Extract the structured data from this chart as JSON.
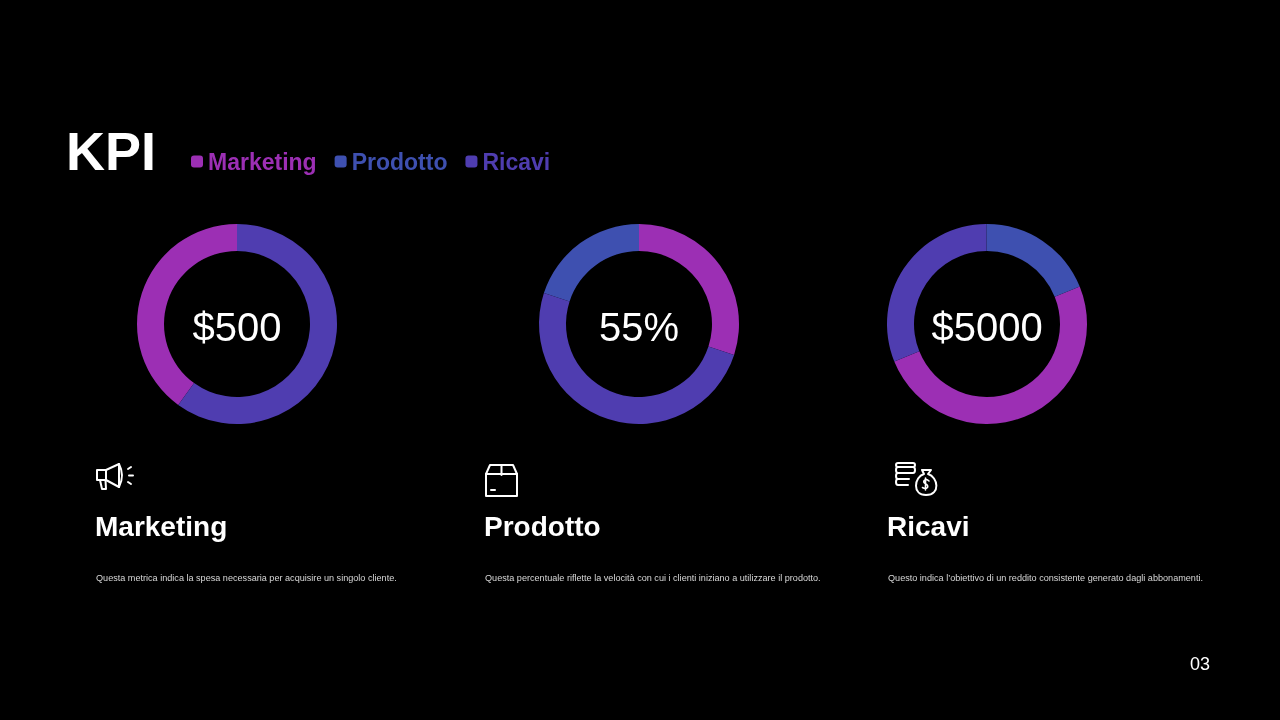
{
  "chart_data": {
    "type": "donut",
    "title": "KPI",
    "categories": [
      "Marketing",
      "Prodotto",
      "Ricavi"
    ],
    "colors": [
      "#9c2fb4",
      "#3e50b0",
      "#4f3db0"
    ],
    "legend": "top left",
    "series": [
      {
        "name": "Marketing",
        "values": [
          40,
          null,
          60
        ]
      },
      {
        "name": "Prodotto",
        "values": [
          30,
          20,
          50
        ]
      },
      {
        "name": "Ricavi",
        "values": [
          50,
          19,
          31
        ]
      }
    ],
    "annotations": [
      "$500",
      "55%",
      "$5000",
      "Questa metrica indica la spesa necessaria per acquisire un singolo cliente.",
      "Questa percentuale riflette la velocità con cui i clienti iniziano a utilizzare il prodotto.",
      "Questo indica l’obiettivo di un reddito consistente generato dagli abbonamenti.",
      "03"
    ]
  }
}
